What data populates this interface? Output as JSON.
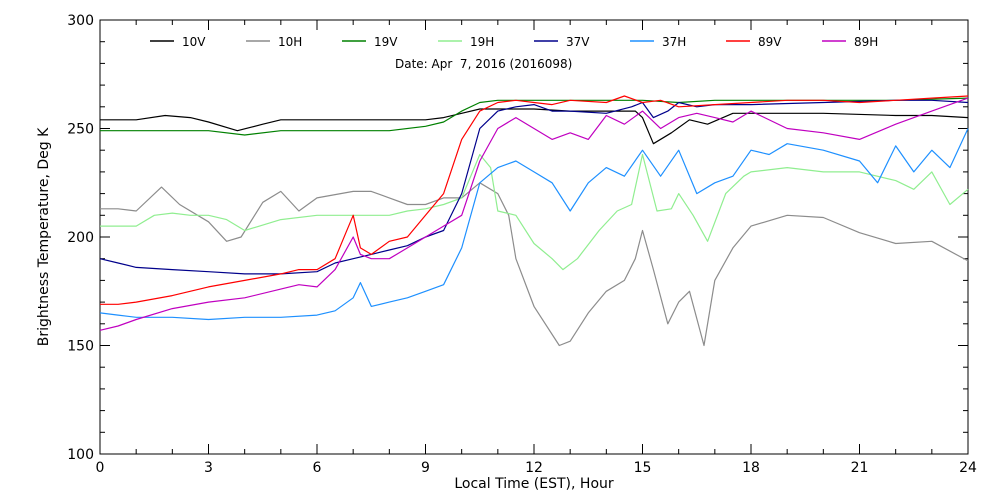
{
  "chart_data": {
    "type": "line",
    "subtitle": "Date: Apr  7, 2016 (2016098)",
    "xlabel": "Local Time (EST), Hour",
    "ylabel": "Brightness Temperature, Deg K",
    "xlim": [
      0,
      24
    ],
    "ylim": [
      100,
      300
    ],
    "x_ticks": [
      0,
      3,
      6,
      9,
      12,
      15,
      18,
      21,
      24
    ],
    "y_ticks": [
      100,
      150,
      200,
      250,
      300
    ],
    "grid": false,
    "legend_position": "top",
    "series": [
      {
        "name": "10V",
        "color": "#000000",
        "x": [
          0,
          1,
          1.8,
          2.5,
          3,
          3.8,
          4.5,
          5,
          6,
          8,
          9,
          9.5,
          10,
          10.5,
          11,
          11.5,
          12,
          13,
          14,
          14.8,
          15,
          15.3,
          15.8,
          16.3,
          16.8,
          17.5,
          18,
          20,
          22,
          23,
          24
        ],
        "y": [
          254,
          254,
          256,
          255,
          253,
          249,
          252,
          254,
          254,
          254,
          254,
          255,
          257,
          259,
          259,
          259,
          259,
          258,
          258,
          258,
          255,
          243,
          248,
          254,
          252,
          257,
          257,
          257,
          256,
          256,
          255
        ]
      },
      {
        "name": "10H",
        "color": "#8c8c8c",
        "x": [
          0,
          0.5,
          1,
          1.7,
          2.2,
          3,
          3.5,
          3.9,
          4.5,
          5,
          5.5,
          6,
          7,
          7.5,
          8,
          8.5,
          9,
          9.5,
          10,
          10.5,
          11,
          11.3,
          11.5,
          12,
          12.7,
          13,
          13.5,
          14,
          14.5,
          14.8,
          15,
          15.3,
          15.7,
          16,
          16.3,
          16.7,
          17,
          17.5,
          18,
          19,
          20,
          21,
          22,
          23,
          24
        ],
        "y": [
          213,
          213,
          212,
          223,
          215,
          207,
          198,
          200,
          216,
          221,
          212,
          218,
          221,
          221,
          218,
          215,
          215,
          218,
          218,
          225,
          220,
          210,
          190,
          168,
          150,
          152,
          165,
          175,
          180,
          190,
          203,
          185,
          160,
          170,
          175,
          150,
          180,
          195,
          205,
          210,
          209,
          202,
          197,
          198,
          189
        ]
      },
      {
        "name": "19V",
        "color": "#008000",
        "x": [
          0,
          1,
          2,
          3,
          4,
          5,
          6,
          8,
          9,
          9.5,
          10,
          10.5,
          11,
          12,
          13,
          14,
          15,
          16,
          17,
          18,
          20,
          22,
          24
        ],
        "y": [
          249,
          249,
          249,
          249,
          247,
          249,
          249,
          249,
          251,
          253,
          258,
          262,
          263,
          263,
          263,
          263,
          263,
          262,
          263,
          263,
          263,
          263,
          264
        ]
      },
      {
        "name": "19H",
        "color": "#90ee90",
        "x": [
          0,
          0.5,
          1,
          1.5,
          2,
          2.5,
          3,
          3.5,
          4,
          5,
          6,
          7,
          8,
          8.5,
          9,
          9.5,
          10,
          10.5,
          10.8,
          11,
          11.5,
          12,
          12.5,
          12.8,
          13.2,
          13.8,
          14.3,
          14.7,
          15,
          15.4,
          15.8,
          16,
          16.4,
          16.8,
          17.3,
          17.8,
          18,
          19,
          20,
          21,
          22,
          22.5,
          23,
          23.5,
          24
        ],
        "y": [
          205,
          205,
          205,
          210,
          211,
          210,
          210,
          208,
          203,
          208,
          210,
          210,
          210,
          212,
          213,
          215,
          218,
          238,
          232,
          212,
          210,
          197,
          190,
          185,
          190,
          203,
          212,
          215,
          238,
          212,
          213,
          220,
          210,
          198,
          220,
          228,
          230,
          232,
          230,
          230,
          226,
          222,
          230,
          215,
          222
        ]
      },
      {
        "name": "37V",
        "color": "#00008b",
        "x": [
          0,
          0.5,
          1,
          2,
          3,
          4,
          5,
          6,
          6.5,
          7,
          7.5,
          8,
          8.5,
          9,
          9.5,
          10,
          10.5,
          11,
          11.5,
          12,
          12.5,
          13,
          14,
          14.7,
          15,
          15.3,
          15.7,
          16,
          16.5,
          17,
          18,
          20,
          22,
          23,
          24
        ],
        "y": [
          190,
          188,
          186,
          185,
          184,
          183,
          183,
          184,
          188,
          190,
          192,
          194,
          196,
          200,
          203,
          220,
          250,
          258,
          260,
          261,
          258,
          258,
          257,
          260,
          262,
          255,
          258,
          262,
          260,
          261,
          261,
          262,
          263,
          263,
          262
        ]
      },
      {
        "name": "37H",
        "color": "#1e90ff",
        "x": [
          0,
          0.5,
          1,
          2,
          3,
          4,
          5,
          6,
          6.5,
          7,
          7.2,
          7.5,
          8,
          8.5,
          9,
          9.5,
          10,
          10.5,
          11,
          11.5,
          12,
          12.5,
          13,
          13.5,
          14,
          14.5,
          15,
          15.5,
          16,
          16.5,
          17,
          17.5,
          18,
          18.5,
          19,
          20,
          21,
          21.5,
          22,
          22.5,
          23,
          23.5,
          24
        ],
        "y": [
          165,
          164,
          163,
          163,
          162,
          163,
          163,
          164,
          166,
          172,
          179,
          168,
          170,
          172,
          175,
          178,
          195,
          225,
          232,
          235,
          230,
          225,
          212,
          225,
          232,
          228,
          240,
          228,
          240,
          220,
          225,
          228,
          240,
          238,
          243,
          240,
          235,
          225,
          242,
          230,
          240,
          232,
          250
        ]
      },
      {
        "name": "89V",
        "color": "#ff0000",
        "x": [
          0,
          0.5,
          1,
          2,
          3,
          4,
          5,
          5.5,
          6,
          6.5,
          6.8,
          7,
          7.2,
          7.5,
          8,
          8.5,
          9,
          9.5,
          10,
          10.5,
          11,
          11.5,
          12,
          12.5,
          13,
          14,
          14.5,
          15,
          15.5,
          16,
          17,
          18,
          19,
          20,
          21,
          22,
          23,
          24
        ],
        "y": [
          169,
          169,
          170,
          173,
          177,
          180,
          183,
          185,
          185,
          190,
          202,
          210,
          195,
          192,
          198,
          200,
          210,
          220,
          245,
          258,
          262,
          263,
          262,
          261,
          263,
          262,
          265,
          262,
          263,
          260,
          261,
          262,
          263,
          263,
          262,
          263,
          264,
          265
        ]
      },
      {
        "name": "89H",
        "color": "#c000c0",
        "x": [
          0,
          0.5,
          1,
          2,
          3,
          4,
          5,
          5.5,
          6,
          6.5,
          7,
          7.2,
          7.5,
          8,
          8.5,
          9,
          9.5,
          10,
          10.5,
          11,
          11.5,
          12,
          12.5,
          13,
          13.5,
          14,
          14.5,
          15,
          15.5,
          16,
          16.5,
          17,
          17.5,
          18,
          19,
          20,
          21,
          22,
          23,
          24
        ],
        "y": [
          157,
          159,
          162,
          167,
          170,
          172,
          176,
          178,
          177,
          185,
          200,
          192,
          190,
          190,
          195,
          200,
          205,
          210,
          235,
          250,
          255,
          250,
          245,
          248,
          245,
          256,
          252,
          258,
          250,
          255,
          257,
          255,
          253,
          258,
          250,
          248,
          245,
          252,
          258,
          264
        ]
      }
    ]
  }
}
